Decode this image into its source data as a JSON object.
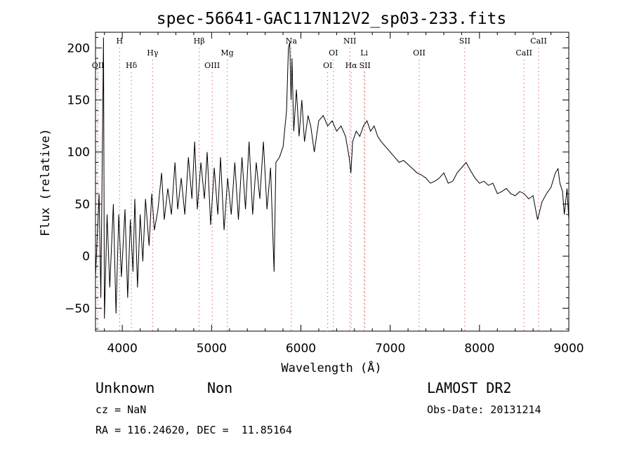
{
  "chart_data": {
    "type": "line",
    "title": "spec-56641-GAC117N12V2_sp03-233.fits",
    "xlabel": "Wavelength (Å)",
    "ylabel": "Flux (relative)",
    "xlim": [
      3700,
      9000
    ],
    "ylim": [
      -72,
      215
    ],
    "xticks": [
      4000,
      5000,
      6000,
      7000,
      8000,
      9000
    ],
    "yticks": [
      -50,
      0,
      50,
      100,
      150,
      200
    ],
    "grid": false,
    "series": [
      {
        "values": [
          [
            3700,
            -20
          ],
          [
            3740,
            60
          ],
          [
            3760,
            -40
          ],
          [
            3790,
            210
          ],
          [
            3800,
            -60
          ],
          [
            3830,
            40
          ],
          [
            3860,
            -30
          ],
          [
            3900,
            50
          ],
          [
            3930,
            -55
          ],
          [
            3960,
            40
          ],
          [
            3990,
            -20
          ],
          [
            4030,
            45
          ],
          [
            4060,
            -40
          ],
          [
            4090,
            35
          ],
          [
            4120,
            -15
          ],
          [
            4140,
            55
          ],
          [
            4170,
            -30
          ],
          [
            4200,
            40
          ],
          [
            4230,
            -5
          ],
          [
            4260,
            55
          ],
          [
            4300,
            10
          ],
          [
            4330,
            60
          ],
          [
            4360,
            25
          ],
          [
            4400,
            45
          ],
          [
            4440,
            80
          ],
          [
            4470,
            35
          ],
          [
            4510,
            65
          ],
          [
            4550,
            40
          ],
          [
            4590,
            90
          ],
          [
            4620,
            45
          ],
          [
            4660,
            75
          ],
          [
            4700,
            40
          ],
          [
            4740,
            95
          ],
          [
            4780,
            55
          ],
          [
            4810,
            110
          ],
          [
            4840,
            45
          ],
          [
            4880,
            90
          ],
          [
            4920,
            55
          ],
          [
            4950,
            100
          ],
          [
            4990,
            30
          ],
          [
            5030,
            85
          ],
          [
            5070,
            40
          ],
          [
            5100,
            95
          ],
          [
            5140,
            25
          ],
          [
            5180,
            75
          ],
          [
            5220,
            40
          ],
          [
            5260,
            90
          ],
          [
            5300,
            35
          ],
          [
            5340,
            95
          ],
          [
            5380,
            45
          ],
          [
            5420,
            110
          ],
          [
            5460,
            40
          ],
          [
            5500,
            90
          ],
          [
            5540,
            55
          ],
          [
            5580,
            110
          ],
          [
            5620,
            45
          ],
          [
            5660,
            85
          ],
          [
            5700,
            -15
          ],
          [
            5720,
            90
          ],
          [
            5760,
            95
          ],
          [
            5800,
            105
          ],
          [
            5840,
            140
          ],
          [
            5860,
            200
          ],
          [
            5875,
            205
          ],
          [
            5890,
            150
          ],
          [
            5900,
            190
          ],
          [
            5920,
            120
          ],
          [
            5950,
            160
          ],
          [
            5980,
            115
          ],
          [
            6010,
            150
          ],
          [
            6040,
            110
          ],
          [
            6080,
            135
          ],
          [
            6110,
            125
          ],
          [
            6150,
            100
          ],
          [
            6200,
            130
          ],
          [
            6250,
            135
          ],
          [
            6300,
            125
          ],
          [
            6350,
            130
          ],
          [
            6400,
            120
          ],
          [
            6450,
            125
          ],
          [
            6500,
            115
          ],
          [
            6540,
            95
          ],
          [
            6560,
            80
          ],
          [
            6580,
            110
          ],
          [
            6620,
            120
          ],
          [
            6660,
            115
          ],
          [
            6700,
            125
          ],
          [
            6740,
            130
          ],
          [
            6780,
            120
          ],
          [
            6820,
            125
          ],
          [
            6860,
            115
          ],
          [
            6900,
            110
          ],
          [
            6950,
            105
          ],
          [
            7000,
            100
          ],
          [
            7050,
            95
          ],
          [
            7100,
            90
          ],
          [
            7150,
            92
          ],
          [
            7200,
            88
          ],
          [
            7250,
            84
          ],
          [
            7300,
            80
          ],
          [
            7350,
            78
          ],
          [
            7400,
            75
          ],
          [
            7450,
            70
          ],
          [
            7500,
            72
          ],
          [
            7550,
            75
          ],
          [
            7600,
            80
          ],
          [
            7650,
            70
          ],
          [
            7700,
            72
          ],
          [
            7750,
            80
          ],
          [
            7800,
            85
          ],
          [
            7850,
            90
          ],
          [
            7900,
            82
          ],
          [
            7950,
            75
          ],
          [
            8000,
            70
          ],
          [
            8050,
            72
          ],
          [
            8100,
            68
          ],
          [
            8150,
            70
          ],
          [
            8200,
            60
          ],
          [
            8250,
            62
          ],
          [
            8300,
            65
          ],
          [
            8350,
            60
          ],
          [
            8400,
            58
          ],
          [
            8450,
            62
          ],
          [
            8500,
            60
          ],
          [
            8550,
            55
          ],
          [
            8600,
            58
          ],
          [
            8650,
            35
          ],
          [
            8700,
            52
          ],
          [
            8750,
            60
          ],
          [
            8800,
            66
          ],
          [
            8850,
            80
          ],
          [
            8880,
            84
          ],
          [
            8900,
            70
          ],
          [
            8930,
            62
          ],
          [
            8950,
            40
          ],
          [
            8980,
            65
          ],
          [
            9000,
            35
          ]
        ]
      }
    ],
    "lines": [
      {
        "name": "OII",
        "x": 3728,
        "row": 2
      },
      {
        "name": "H",
        "x": 3970,
        "row": 0
      },
      {
        "name": "Hδ",
        "x": 4102,
        "row": 2
      },
      {
        "name": "Hγ",
        "x": 4340,
        "row": 1
      },
      {
        "name": "Hβ",
        "x": 4861,
        "row": 0
      },
      {
        "name": "OIII",
        "x": 5007,
        "row": 2
      },
      {
        "name": "Mg",
        "x": 5175,
        "row": 1
      },
      {
        "name": "Na",
        "x": 5893,
        "row": 0
      },
      {
        "name": "OI",
        "x": 6300,
        "row": 2
      },
      {
        "name": "OI",
        "x": 6364,
        "row": 1
      },
      {
        "name": "NII",
        "x": 6548,
        "row": 0
      },
      {
        "name": "Hα",
        "x": 6563,
        "row": 2
      },
      {
        "name": "Li",
        "x": 6708,
        "row": 1
      },
      {
        "name": "SII",
        "x": 6717,
        "row": 2
      },
      {
        "name": "OII",
        "x": 7325,
        "row": 1
      },
      {
        "name": "SII",
        "x": 7835,
        "row": 0
      },
      {
        "name": "CaII",
        "x": 8498,
        "row": 1
      },
      {
        "name": "CaII",
        "x": 8662,
        "row": 0
      }
    ]
  },
  "info": {
    "class": "Unknown",
    "subclass": "Non",
    "survey": "LAMOST DR2",
    "cz": "cz = NaN",
    "obs_date": "Obs-Date: 20131214",
    "coords": "RA = 116.24620, DEC =  11.85164"
  }
}
